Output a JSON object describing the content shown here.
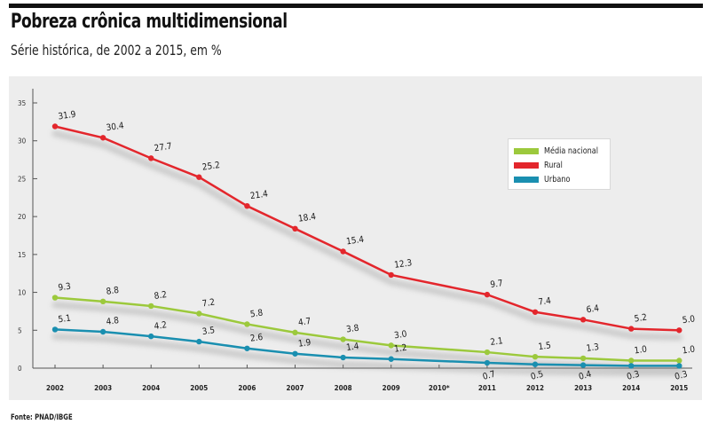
{
  "header": {
    "title": "Pobreza crônica multidimensional",
    "subtitle": "Série histórica, de 2002 a 2015, em %"
  },
  "footer": {
    "source": "Fonte: PNAD/IBGE"
  },
  "chart_data": {
    "type": "line",
    "title": "Pobreza crônica multidimensional",
    "subtitle": "Série histórica, de 2002 a 2015, em %",
    "categories": [
      "2002",
      "2003",
      "2004",
      "2005",
      "2006",
      "2007",
      "2008",
      "2009",
      "2010*",
      "2011",
      "2012",
      "2013",
      "2014",
      "2015"
    ],
    "ylim": [
      0,
      35
    ],
    "yticks": [
      0,
      5,
      10,
      15,
      20,
      25,
      30,
      35
    ],
    "grid": false,
    "legend_position": "top-right",
    "series": [
      {
        "name": "Média nacional",
        "color": "#9cc93c",
        "values": [
          9.3,
          8.8,
          8.2,
          7.2,
          5.8,
          4.7,
          3.8,
          3.0,
          null,
          2.1,
          1.5,
          1.3,
          1.0,
          1.0
        ],
        "labels": [
          "9.3",
          "8.8",
          "8.2",
          "7.2",
          "5.8",
          "4.7",
          "3.8",
          "3.0",
          null,
          "2.1",
          "1.5",
          "1.3",
          "1.0",
          "1.0"
        ]
      },
      {
        "name": "Rural",
        "color": "#e3262c",
        "values": [
          31.9,
          30.4,
          27.7,
          25.2,
          21.4,
          18.4,
          15.4,
          12.3,
          null,
          9.7,
          7.4,
          6.4,
          5.2,
          5.0
        ],
        "labels": [
          "31.9",
          "30.4",
          "27.7",
          "25.2",
          "21.4",
          "18.4",
          "15.4",
          "12.3",
          null,
          "9.7",
          "7.4",
          "6.4",
          "5.2",
          "5.0"
        ]
      },
      {
        "name": "Urbano",
        "color": "#1a8fb0",
        "values": [
          5.1,
          4.8,
          4.2,
          3.5,
          2.6,
          1.9,
          1.4,
          1.2,
          null,
          0.7,
          0.5,
          0.4,
          0.3,
          0.3
        ],
        "labels": [
          "5.1",
          "4.8",
          "4.2",
          "3.5",
          "2.6",
          "1.9",
          "1.4",
          "1.2",
          null,
          "0.7",
          "0.5",
          "0.4",
          "0.3",
          "0.3"
        ]
      }
    ]
  }
}
